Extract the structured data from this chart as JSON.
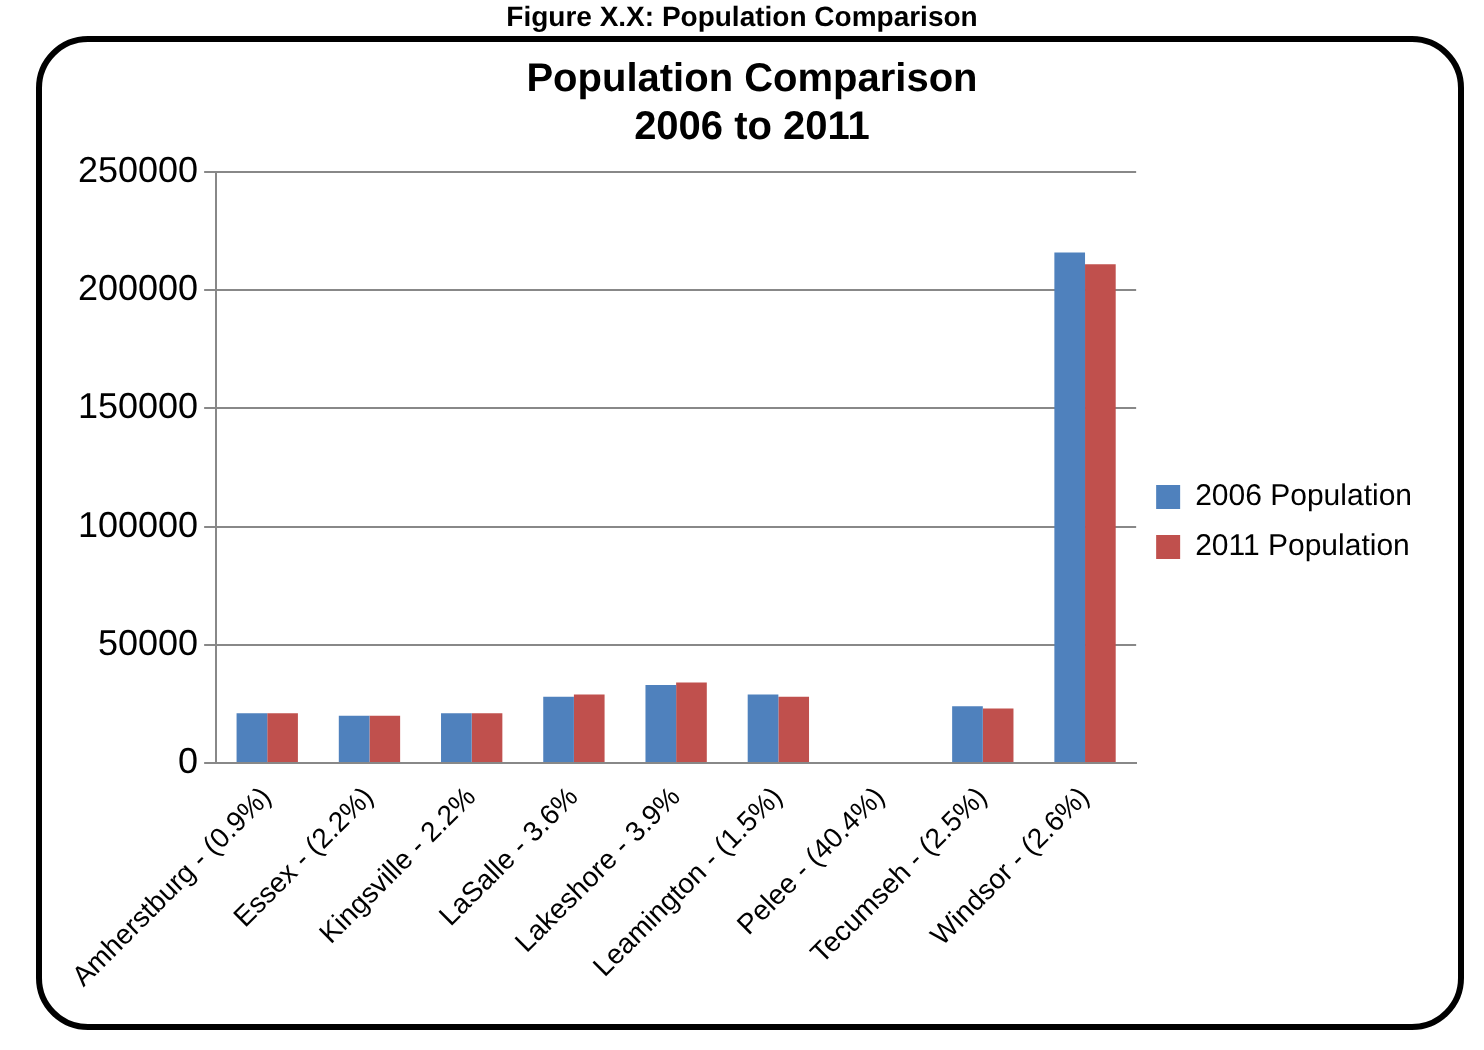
{
  "chart_data": {
    "type": "bar",
    "title": [
      "Population Comparison",
      "2006 to 2011"
    ],
    "annotations": [
      "Figure X.X: Population Comparison"
    ],
    "categories": [
      "Amherstburg - (0.9%)",
      "Essex - (2.2%)",
      "Kingsville - 2.2%",
      "LaSalle - 3.6%",
      "Lakeshore - 3.9%",
      "Leamington - (1.5%)",
      "Pelee - (40.4%)",
      "Tecumseh - (2.5%)",
      "Windsor - (2.6%)"
    ],
    "series": [
      {
        "name": "2006 Population",
        "color": "#4f81bd",
        "values": [
          21000,
          20000,
          21000,
          28000,
          33000,
          29000,
          null,
          24000,
          216000
        ]
      },
      {
        "name": "2011 Population",
        "color": "#c0504d",
        "values": [
          21000,
          20000,
          21000,
          29000,
          34000,
          28000,
          null,
          23000,
          211000
        ]
      }
    ],
    "ylim": [
      0,
      250000
    ],
    "yticks": [
      0,
      50000,
      100000,
      150000,
      200000,
      250000
    ],
    "grid": "y",
    "legend": "right"
  }
}
